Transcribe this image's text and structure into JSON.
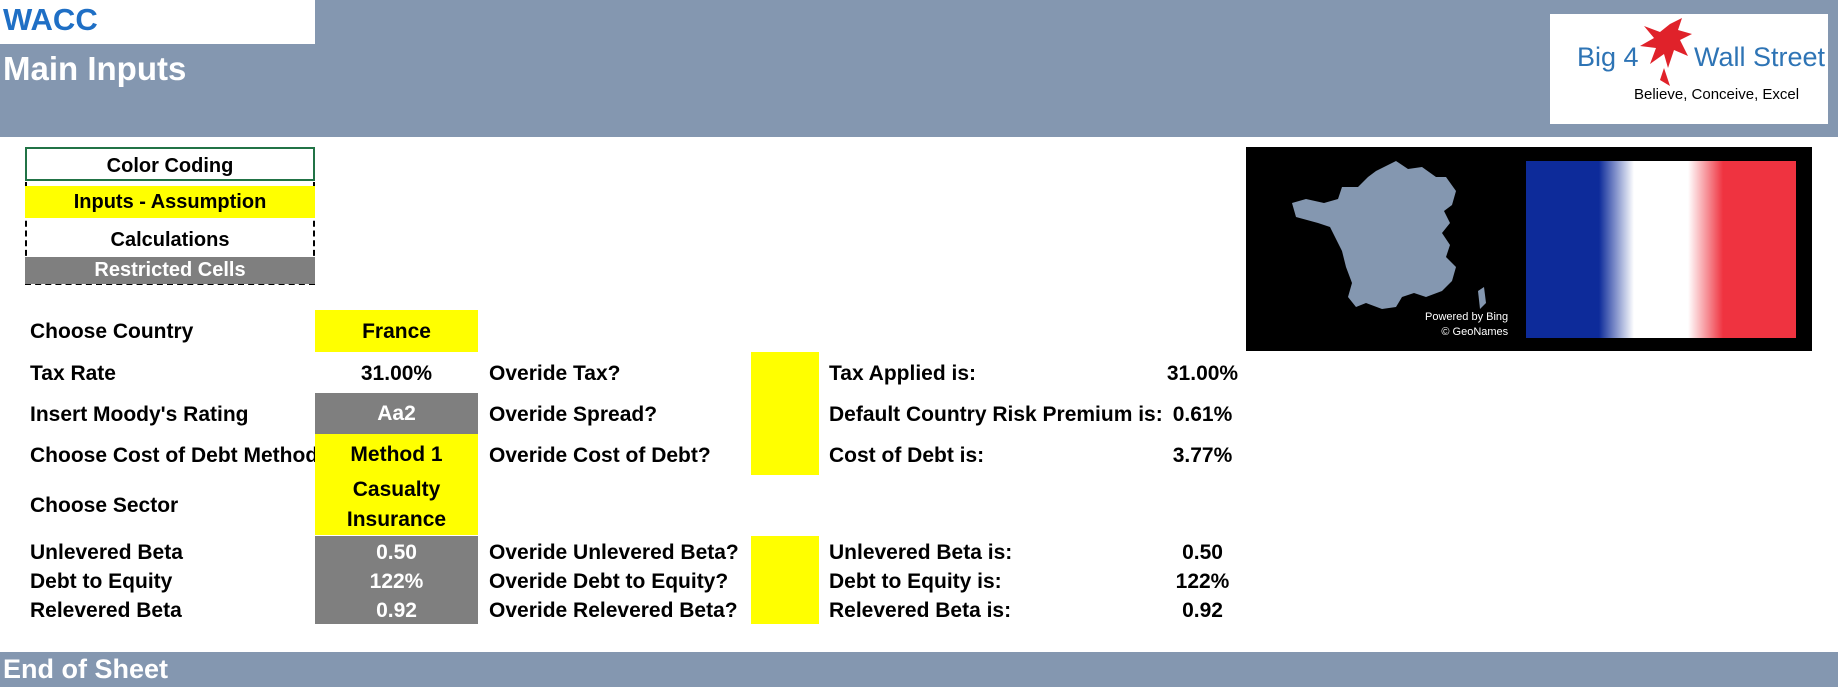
{
  "header": {
    "title": "WACC",
    "subtitle": "Main Inputs",
    "logo": {
      "text_left": "Big 4",
      "text_right": "Wall Street",
      "tagline": "Believe, Conceive, Excel",
      "icon": "eagle-icon",
      "accent_color": "#e0222a"
    }
  },
  "color_coding": {
    "title": "Color Coding",
    "inputs": "Inputs - Assumption",
    "calculations": "Calculations",
    "restricted": "Restricted Cells"
  },
  "map": {
    "credit_line1": "Powered by Bing",
    "credit_line2": "© GeoNames"
  },
  "rows": {
    "country": {
      "label": "Choose Country",
      "value": "France"
    },
    "tax": {
      "label": "Tax Rate",
      "value": "31.00%",
      "override_label": "Overide Tax?",
      "result_label": "Tax Applied is:",
      "result_value": "31.00%"
    },
    "rating": {
      "label": "Insert Moody's Rating",
      "value": "Aa2",
      "override_label": "Overide Spread?",
      "result_label": "Default Country Risk Premium is:",
      "result_value": "0.61%"
    },
    "cod": {
      "label": "Choose Cost of Debt Method",
      "value": "Method 1",
      "override_label": "Overide Cost of Debt?",
      "result_label": "Cost of Debt is:",
      "result_value": "3.77%"
    },
    "sector": {
      "label": "Choose Sector",
      "value_line1": "Casualty",
      "value_line2": "Insurance"
    },
    "ubeta": {
      "label": "Unlevered Beta",
      "value": "0.50",
      "override_label": "Overide Unlevered Beta?",
      "result_label": "Unlevered Beta is:",
      "result_value": "0.50"
    },
    "de": {
      "label": "Debt to Equity",
      "value": "122%",
      "override_label": "Overide Debt to Equity?",
      "result_label": "Debt to Equity is:",
      "result_value": "122%"
    },
    "rbeta": {
      "label": "Relevered Beta",
      "value": "0.92",
      "override_label": "Overide Relevered Beta?",
      "result_label": "Relevered Beta is:",
      "result_value": "0.92"
    }
  },
  "footer": {
    "label": "End of Sheet"
  },
  "colors": {
    "header_bg": "#8497b0",
    "input_yellow": "#ffff00",
    "restricted_gray": "#7f7f7f",
    "title_blue": "#1f6fc5"
  }
}
